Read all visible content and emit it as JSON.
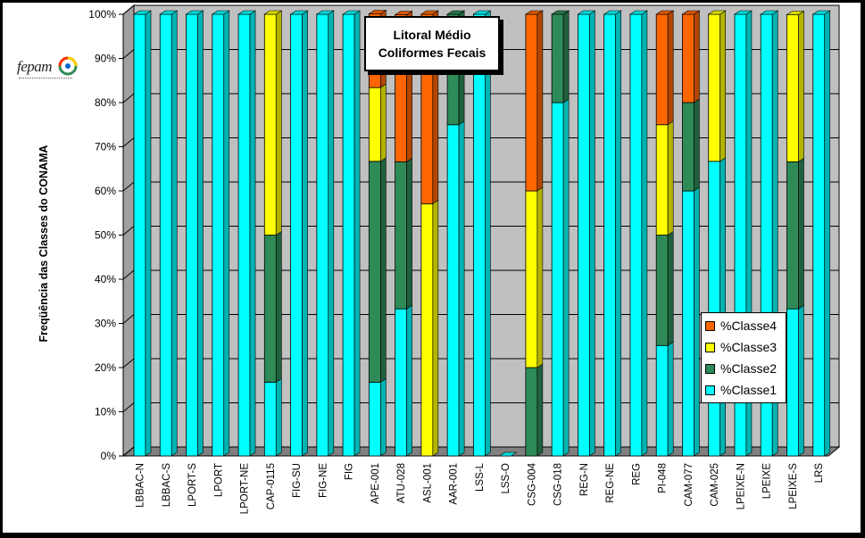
{
  "chart_data": {
    "type": "bar",
    "stacked": true,
    "percent": true,
    "title": [
      "Litoral Médio",
      "Coliformes Fecais"
    ],
    "ylabel": "Freqüência das Classes do CONAMA",
    "xlabel": "",
    "ylim": [
      0,
      100
    ],
    "yticks": [
      "0%",
      "10%",
      "20%",
      "30%",
      "40%",
      "50%",
      "60%",
      "70%",
      "80%",
      "90%",
      "100%"
    ],
    "legend_position": "right-bottom",
    "categories": [
      "LBBAC-N",
      "LBBAC-S",
      "LPORT-S",
      "LPORT",
      "LPORT-NE",
      "CAP-0115",
      "FIG-SU",
      "FIG-NE",
      "FIG",
      "APE-001",
      "ATU-028",
      "ASL-001",
      "AAR-001",
      "LSS-L",
      "LSS-O",
      "CSG-004",
      "CSG-018",
      "REG-N",
      "REG-NE",
      "REG",
      "PI-048",
      "CAM-077",
      "CAM-025",
      "LPEIXE-N",
      "LPEIXE",
      "LPEIXE-S",
      "LRS"
    ],
    "series": [
      {
        "name": "%Classe1",
        "color": "#00ffff",
        "values": [
          100,
          100,
          100,
          100,
          100,
          16.7,
          100,
          100,
          100,
          16.7,
          33.3,
          0,
          75,
          100,
          0,
          0,
          80,
          100,
          100,
          100,
          25,
          60,
          66.7,
          100,
          100,
          33.3,
          100
        ]
      },
      {
        "name": "%Classe2",
        "color": "#2e8b57",
        "values": [
          0,
          0,
          0,
          0,
          0,
          33.3,
          0,
          0,
          0,
          50,
          33.3,
          0,
          25,
          0,
          0,
          20,
          20,
          0,
          0,
          0,
          25,
          20,
          0,
          0,
          0,
          33.3,
          0
        ]
      },
      {
        "name": "%Classe3",
        "color": "#ffff00",
        "values": [
          0,
          0,
          0,
          0,
          0,
          50,
          0,
          0,
          0,
          16.7,
          0,
          57.1,
          0,
          0,
          0,
          40,
          0,
          0,
          0,
          0,
          25,
          0,
          33.3,
          0,
          0,
          33.3,
          0
        ]
      },
      {
        "name": "%Classe4",
        "color": "#ff6600",
        "values": [
          0,
          0,
          0,
          0,
          0,
          0,
          0,
          0,
          0,
          16.7,
          33.3,
          42.9,
          0,
          0,
          0,
          40,
          0,
          0,
          0,
          0,
          25,
          20,
          0,
          0,
          0,
          0,
          0
        ]
      }
    ]
  },
  "legend": [
    {
      "label": "%Classe4",
      "color": "#ff6600"
    },
    {
      "label": "%Classe3",
      "color": "#ffff00"
    },
    {
      "label": "%Classe2",
      "color": "#2e8b57"
    },
    {
      "label": "%Classe1",
      "color": "#00ffff"
    }
  ],
  "logo": {
    "text": "fepam",
    "icon": "fepam-logo-mark"
  },
  "colors": {
    "plot_wall": "#c0c0c0",
    "floor": "#808080",
    "frame": "#000000"
  }
}
